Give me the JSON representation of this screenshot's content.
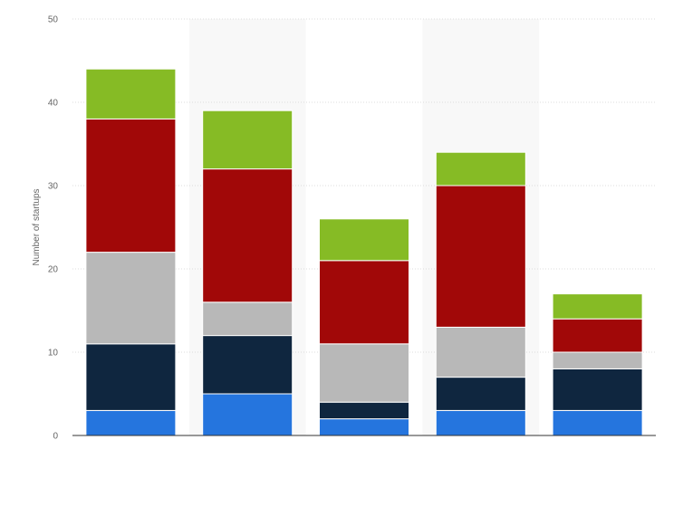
{
  "chart_data": {
    "type": "bar",
    "stacked": true,
    "title": "",
    "xlabel": "",
    "ylabel": "Number of startups",
    "ylim": [
      0,
      50
    ],
    "yticks": [
      0,
      10,
      20,
      30,
      40,
      50
    ],
    "grid": true,
    "categories": [
      "",
      "",
      "",
      "",
      ""
    ],
    "series": [
      {
        "color": "#2575DE",
        "values": [
          3,
          5,
          2,
          3,
          3
        ]
      },
      {
        "color": "#0F263F",
        "values": [
          8,
          7,
          2,
          4,
          5
        ]
      },
      {
        "color": "#B8B8B8",
        "values": [
          11,
          4,
          7,
          6,
          2
        ]
      },
      {
        "color": "#A10808",
        "values": [
          16,
          16,
          10,
          17,
          4
        ]
      },
      {
        "color": "#86BB25",
        "values": [
          6,
          7,
          5,
          4,
          3
        ]
      }
    ]
  }
}
